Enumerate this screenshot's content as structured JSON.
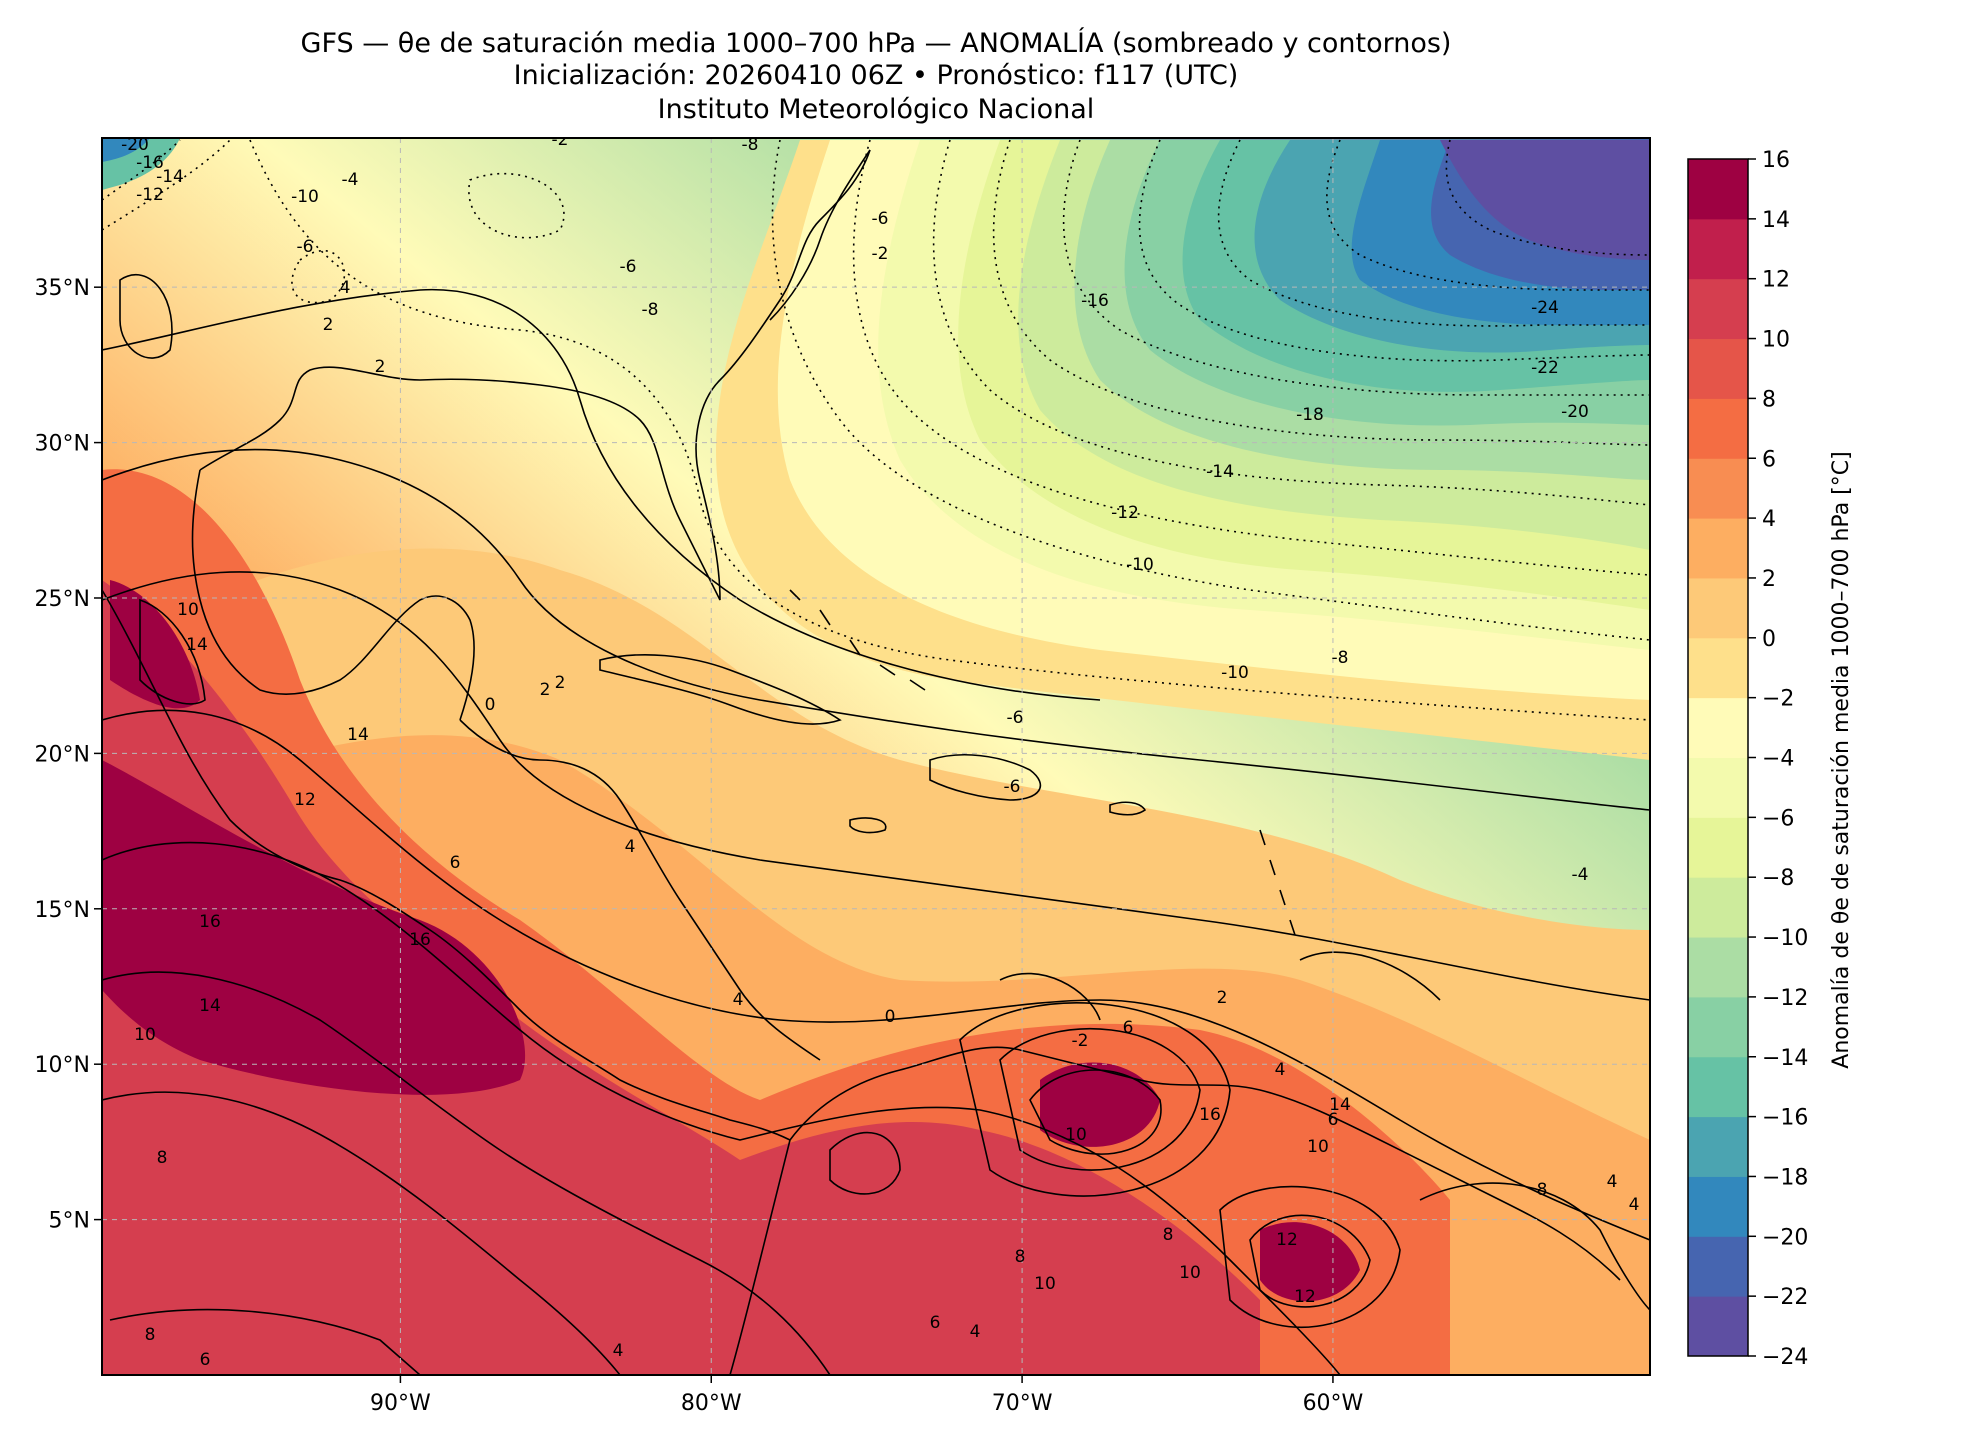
{
  "title": {
    "line1": "GFS — θe de saturación media 1000–700 hPa — ANOMALÍA (sombreado y contornos)",
    "line2": "Inicialización: 20260410 06Z   •   Pronóstico: f117 (UTC)",
    "line3": "Instituto Meteorológico Nacional"
  },
  "map": {
    "extent": {
      "lon": [
        -99.6,
        -49.8
      ],
      "lat": [
        0,
        39.8
      ]
    },
    "lon_ticks": [
      -90,
      -80,
      -70,
      -60
    ],
    "lon_tick_labels": [
      "90°W",
      "80°W",
      "70°W",
      "60°W"
    ],
    "lat_ticks": [
      5,
      10,
      15,
      20,
      25,
      30,
      35
    ],
    "lat_tick_labels": [
      "5°N",
      "10°N",
      "15°N",
      "20°N",
      "25°N",
      "30°N",
      "35°N"
    ],
    "gridlines": "dashed light gray",
    "contour_style": {
      "positive": "solid black",
      "negative": "dotted black"
    },
    "contour_labels": [
      "-20",
      "-16",
      "-14",
      "-12",
      "-10",
      "-6",
      "-4",
      "-2",
      "-8",
      "-6",
      "-8",
      "-2",
      "-6",
      "-16",
      "-24",
      "-22",
      "-18",
      "-20",
      "-14",
      "-12",
      "-10",
      "-10",
      "-8",
      "-6",
      "-6",
      "-4",
      "2",
      "4",
      "2",
      "2",
      "0",
      "2",
      "4",
      "6",
      "10",
      "14",
      "14",
      "12",
      "16",
      "16",
      "14",
      "10",
      "8",
      "8",
      "6",
      "4",
      "4",
      "6",
      "-2",
      "0",
      "10",
      "8",
      "16",
      "10",
      "8",
      "12",
      "12",
      "10",
      "6",
      "4",
      "2",
      "4",
      "6",
      "14",
      "10",
      "8",
      "4",
      "4"
    ]
  },
  "colorbar": {
    "label": "Anomalía de θe de saturación media 1000–700 hPa [°C]",
    "levels": [
      -24,
      -22,
      -20,
      -18,
      -16,
      -14,
      -12,
      -10,
      -8,
      -6,
      -4,
      -2,
      0,
      2,
      4,
      6,
      8,
      10,
      12,
      14,
      16
    ],
    "tick_labels": [
      "−24",
      "−22",
      "−20",
      "−18",
      "−16",
      "−14",
      "−12",
      "−10",
      "−8",
      "−6",
      "−4",
      "−2",
      "0",
      "2",
      "4",
      "6",
      "8",
      "10",
      "12",
      "14",
      "16"
    ],
    "colors": [
      "#5e4fa2",
      "#4665b0",
      "#3288bd",
      "#4ba4b1",
      "#66c2a5",
      "#88d0a4",
      "#abdda4",
      "#cdeb9c",
      "#e6f598",
      "#f3faad",
      "#fffbb8",
      "#fee08b",
      "#fdc978",
      "#fdae61",
      "#f88d52",
      "#f46d43",
      "#e55549",
      "#d53e4f",
      "#c11f4c",
      "#9e0142"
    ]
  }
}
